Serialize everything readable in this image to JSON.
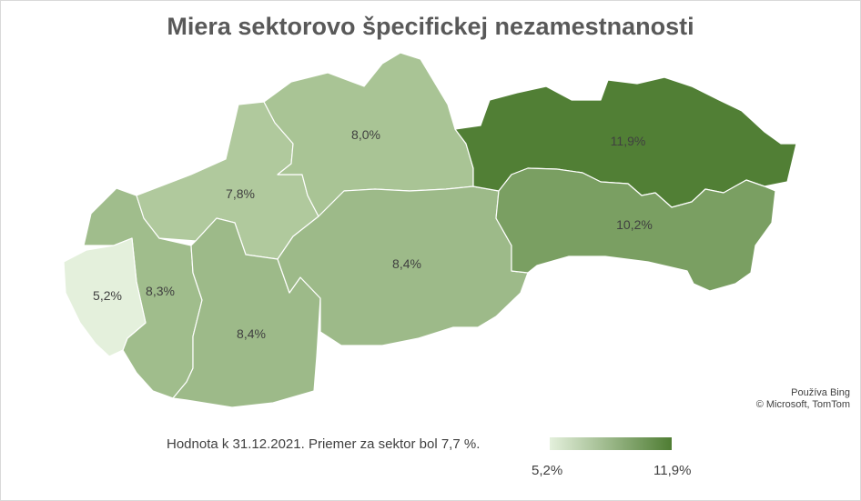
{
  "title": "Miera sektorovo špecifickej nezamestnanosti",
  "regions": [
    {
      "id": "bratislava",
      "label": "5,2%",
      "value": 5.2,
      "color": "#e4f0dc"
    },
    {
      "id": "trnava",
      "label": "8,3%",
      "value": 8.3,
      "color": "#a0bd8c"
    },
    {
      "id": "trencin",
      "label": "7,8%",
      "value": 7.8,
      "color": "#b0c99d"
    },
    {
      "id": "nitra",
      "label": "8,4%",
      "value": 8.4,
      "color": "#9dba89"
    },
    {
      "id": "zilina",
      "label": "8,0%",
      "value": 8.0,
      "color": "#a9c495"
    },
    {
      "id": "banska-bystrica",
      "label": "8,4%",
      "value": 8.4,
      "color": "#9dba89"
    },
    {
      "id": "presov",
      "label": "11,9%",
      "value": 11.9,
      "color": "#517f35"
    },
    {
      "id": "kosice",
      "label": "10,2%",
      "value": 10.2,
      "color": "#7a9f62"
    }
  ],
  "attribution": {
    "line1": "Používa Bing",
    "line2": "© Microsoft, TomTom"
  },
  "footnote": "Hodnota k 31.12.2021. Priemer za sektor bol 7,7 %.",
  "legend": {
    "min_label": "5,2%",
    "max_label": "11,9%",
    "min_color": "#e4f0dc",
    "max_color": "#4f7d33"
  }
}
